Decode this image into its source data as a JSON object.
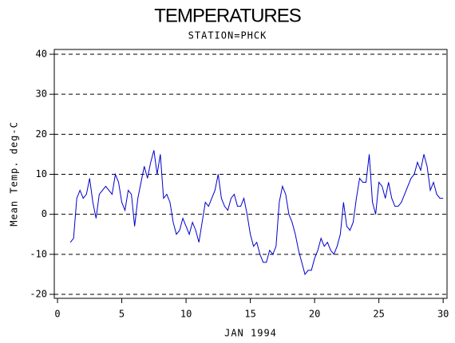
{
  "chart_data": {
    "type": "line",
    "title": "TEMPERATURES",
    "subtitle": "STATION=PHCK",
    "x_label": "JAN 1994",
    "y_label": "Mean Temp. deg-C",
    "x": [
      1,
      1.25,
      1.5,
      1.75,
      2,
      2.25,
      2.5,
      2.75,
      3,
      3.25,
      3.5,
      3.75,
      4,
      4.25,
      4.5,
      4.75,
      5,
      5.25,
      5.5,
      5.75,
      6,
      6.25,
      6.5,
      6.75,
      7,
      7.25,
      7.5,
      7.75,
      8,
      8.25,
      8.5,
      8.75,
      9,
      9.25,
      9.5,
      9.75,
      10,
      10.25,
      10.5,
      10.75,
      11,
      11.25,
      11.5,
      11.75,
      12,
      12.25,
      12.5,
      12.75,
      13,
      13.25,
      13.5,
      13.75,
      14,
      14.25,
      14.5,
      14.75,
      15,
      15.25,
      15.5,
      15.75,
      16,
      16.25,
      16.5,
      16.75,
      17,
      17.25,
      17.5,
      17.75,
      18,
      18.25,
      18.5,
      18.75,
      19,
      19.25,
      19.5,
      19.75,
      20,
      20.25,
      20.5,
      20.75,
      21,
      21.25,
      21.5,
      21.75,
      22,
      22.25,
      22.5,
      22.75,
      23,
      23.25,
      23.5,
      23.75,
      24,
      24.25,
      24.5,
      24.75,
      25,
      25.25,
      25.5,
      25.75,
      26,
      26.25,
      26.5,
      26.75,
      27,
      27.25,
      27.5,
      27.75,
      28,
      28.25,
      28.5,
      28.75,
      29,
      29.25,
      29.5,
      29.75,
      30
    ],
    "series": [
      {
        "name": "Mean Temp",
        "color": "#0000cc",
        "values": [
          -7,
          -6,
          4,
          6,
          4,
          5,
          9,
          3,
          -1,
          5,
          6,
          7,
          6,
          5,
          10,
          8,
          3,
          1,
          6,
          5,
          -3,
          4,
          8,
          12,
          9,
          13,
          16,
          10,
          15,
          4,
          5,
          3,
          -2,
          -5,
          -4,
          -1,
          -3,
          -5,
          -2,
          -4,
          -7,
          -2,
          3,
          2,
          4,
          6,
          10,
          4,
          2,
          1,
          4,
          5,
          2,
          2,
          4,
          0,
          -5,
          -8,
          -7,
          -10,
          -12,
          -12,
          -9,
          -10,
          -8,
          3,
          7,
          5,
          0,
          -2,
          -5,
          -9,
          -12,
          -15,
          -14,
          -14,
          -11,
          -9,
          -6,
          -8,
          -7,
          -9,
          -10,
          -8,
          -5,
          3,
          -3,
          -4,
          -2,
          4,
          9,
          8,
          8,
          15,
          3,
          0,
          8,
          7,
          4,
          8,
          4,
          2,
          2,
          3,
          5,
          7,
          9,
          10,
          13,
          11,
          15,
          12,
          6,
          8,
          5,
          4,
          4
        ]
      }
    ],
    "xlim": [
      -0.25,
      30.3
    ],
    "ylim": [
      -21,
      41.2
    ],
    "xticks": [
      0,
      5,
      10,
      15,
      20,
      25,
      30
    ],
    "yticks": [
      -20,
      -10,
      0,
      10,
      20,
      30,
      40
    ],
    "grid": true
  }
}
